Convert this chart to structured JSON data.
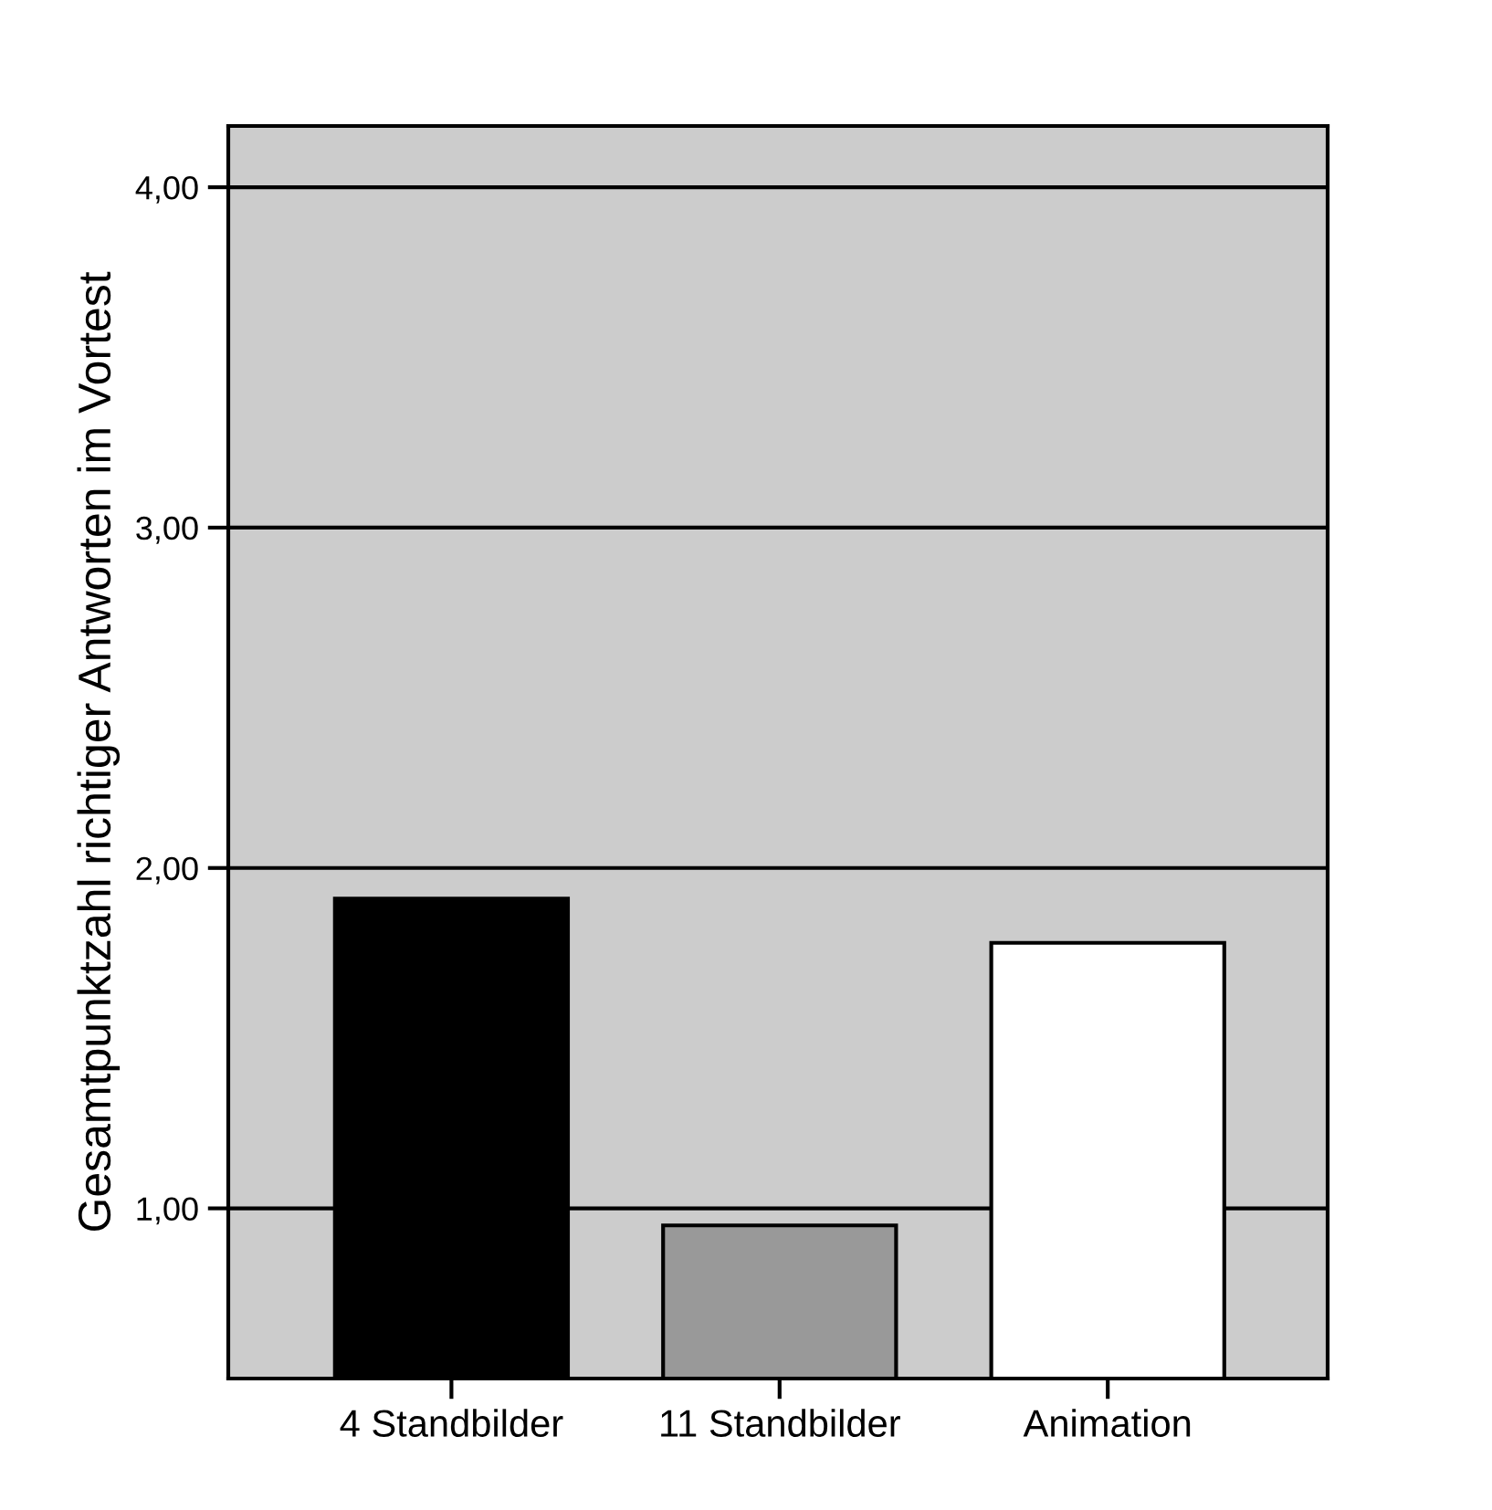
{
  "chart_data": {
    "type": "bar",
    "ylabel": "Gesamtpunktzahl richtiger Antworten im Vortest",
    "categories": [
      "4 Standbilder",
      "11 Standbilder",
      "Animation"
    ],
    "values": [
      1.91,
      0.95,
      1.78
    ],
    "colors": [
      "#000000",
      "#999999",
      "#ffffff"
    ],
    "ylim": [
      0.5,
      4.18
    ],
    "yticks": [
      {
        "value": 1,
        "label": "1,00"
      },
      {
        "value": 2,
        "label": "2,00"
      },
      {
        "value": 3,
        "label": "3,00"
      },
      {
        "value": 4,
        "label": "4,00"
      }
    ],
    "grid": "y"
  }
}
